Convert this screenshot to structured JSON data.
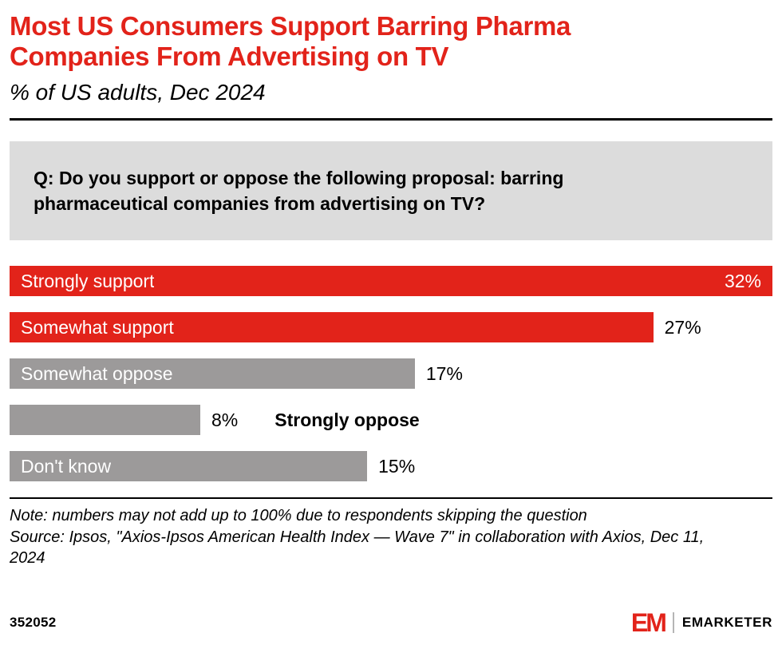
{
  "header": {
    "title": "Most US Consumers Support Barring Pharma Companies From Advertising on TV",
    "subtitle": "% of US adults, Dec 2024"
  },
  "question": "Q: Do you support or oppose the following proposal: barring pharmaceutical companies from advertising on TV?",
  "chart_data": {
    "type": "bar",
    "orientation": "horizontal",
    "title": "Most US Consumers Support Barring Pharma Companies From Advertising on TV",
    "subtitle": "% of US adults, Dec 2024",
    "categories": [
      "Strongly support",
      "Somewhat support",
      "Somewhat oppose",
      "Strongly oppose",
      "Don't know"
    ],
    "values": [
      32,
      27,
      17,
      8,
      15
    ],
    "value_labels": [
      "32%",
      "27%",
      "17%",
      "8%",
      "15%"
    ],
    "unit": "%",
    "xmax": 32,
    "grid": false,
    "legend": "none",
    "colors": [
      "#e2231a",
      "#e2231a",
      "#9c9a9a",
      "#9c9a9a",
      "#9c9a9a"
    ],
    "bar_styles": [
      {
        "label_inside": true,
        "value_inside": true
      },
      {
        "label_inside": true,
        "value_inside": false
      },
      {
        "label_inside": true,
        "value_inside": false
      },
      {
        "label_inside": false,
        "value_inside": false
      },
      {
        "label_inside": true,
        "value_inside": false
      }
    ]
  },
  "footnotes": {
    "note": "Note: numbers may not add up to 100% due to respondents skipping the question",
    "source": "Source: Ipsos, \"Axios-Ipsos American Health Index — Wave 7\" in collaboration with Axios, Dec 11, 2024"
  },
  "footer": {
    "chart_id": "352052",
    "logo_text": "EM",
    "brand": "EMARKETER"
  },
  "colors": {
    "accent_red": "#e2231a",
    "bar_gray": "#9c9a9a",
    "question_bg": "#dcdcdc"
  }
}
